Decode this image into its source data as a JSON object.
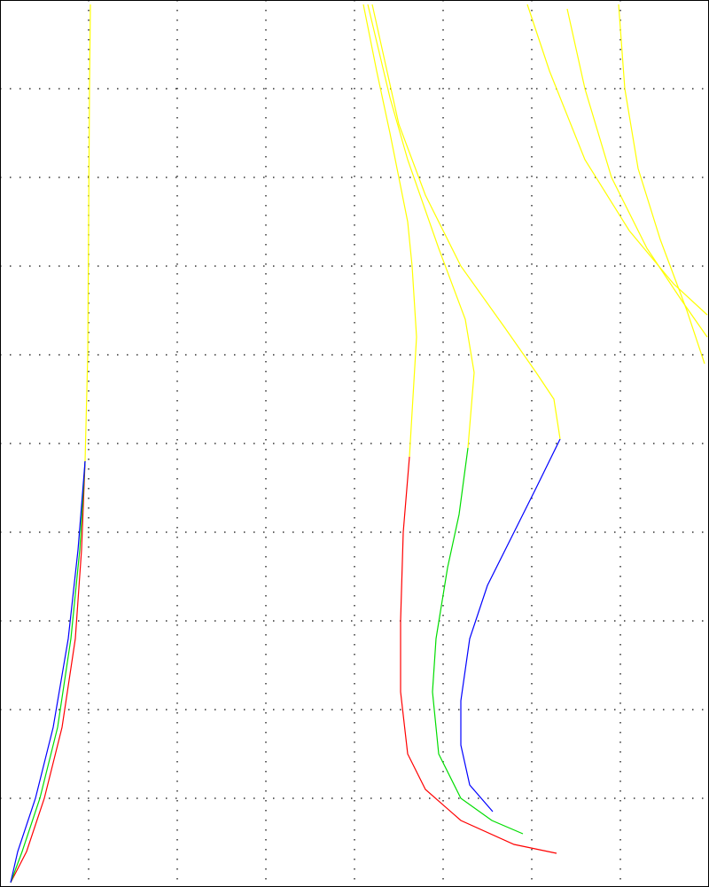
{
  "chart_data": {
    "type": "line",
    "xlim": [
      0,
      8
    ],
    "ylim": [
      0,
      10
    ],
    "xticks": [
      0,
      1,
      2,
      3,
      4,
      5,
      6,
      7,
      8
    ],
    "yticks": [
      0,
      1,
      2,
      3,
      4,
      5,
      6,
      7,
      8,
      9,
      10
    ],
    "grid": true,
    "series": [
      {
        "color": "#ff0000",
        "x": [
          0.12,
          0.3,
          0.5,
          0.7,
          0.85,
          0.92,
          0.96
        ],
        "values": [
          0.05,
          0.4,
          1,
          1.8,
          2.8,
          3.8,
          4.8
        ]
      },
      {
        "color": "#00dd00",
        "x": [
          0.12,
          0.25,
          0.45,
          0.65,
          0.8,
          0.9,
          0.96
        ],
        "values": [
          0.05,
          0.4,
          1,
          1.8,
          2.8,
          3.8,
          4.8
        ]
      },
      {
        "color": "#0000ff",
        "x": [
          0.12,
          0.2,
          0.4,
          0.6,
          0.77,
          0.88,
          0.96
        ],
        "values": [
          0.05,
          0.4,
          1,
          1.8,
          2.8,
          3.8,
          4.8
        ]
      },
      {
        "color": "#ffff00",
        "x": [
          0.96,
          0.99,
          1,
          1.01,
          1.02
        ],
        "values": [
          4.8,
          6,
          7.5,
          9,
          9.95
        ]
      },
      {
        "color": "#ff0000",
        "x": [
          6.28,
          5.8,
          5.2,
          4.8,
          4.6,
          4.52,
          4.52,
          4.55,
          4.62
        ],
        "values": [
          0.38,
          0.48,
          0.75,
          1.1,
          1.5,
          2.2,
          3,
          4,
          4.85
        ]
      },
      {
        "color": "#ffff00",
        "x": [
          4.62,
          4.7,
          4.65,
          4.6,
          4.4,
          4.25,
          4.1
        ],
        "values": [
          4.85,
          6.2,
          7,
          7.5,
          8.5,
          9.2,
          9.95
        ]
      },
      {
        "color": "#00dd00",
        "x": [
          5.9,
          5.55,
          5.2,
          4.95,
          4.88,
          4.92,
          5.05,
          5.18,
          5.28
        ],
        "values": [
          0.6,
          0.75,
          1,
          1.5,
          2.2,
          2.8,
          3.6,
          4.2,
          4.95
        ]
      },
      {
        "color": "#ffff00",
        "x": [
          5.28,
          5.35,
          5.25,
          4.95,
          4.6,
          4.4,
          4.15
        ],
        "values": [
          4.95,
          5.8,
          6.4,
          7.2,
          8.2,
          8.9,
          9.95
        ]
      },
      {
        "color": "#0000ff",
        "x": [
          5.56,
          5.3,
          5.2,
          5.2,
          5.3,
          5.5,
          5.75,
          6.05,
          6.32
        ],
        "values": [
          0.85,
          1.15,
          1.6,
          2.1,
          2.8,
          3.4,
          3.9,
          4.5,
          5.05
        ]
      },
      {
        "color": "#ffff00",
        "x": [
          6.32,
          6.25,
          6.05,
          5.7,
          5.2,
          4.8,
          4.5,
          4.2
        ],
        "values": [
          5.05,
          5.5,
          5.8,
          6.3,
          7,
          7.8,
          8.6,
          9.95
        ]
      },
      {
        "color": "#ffff00",
        "x": [
          5.95,
          6.2,
          6.6,
          7.1,
          7.6,
          7.98
        ],
        "values": [
          9.95,
          9.2,
          8.2,
          7.4,
          6.8,
          6.45
        ]
      },
      {
        "color": "#ffff00",
        "x": [
          6.4,
          6.6,
          6.9,
          7.3,
          7.7,
          7.98
        ],
        "values": [
          9.9,
          9,
          8,
          7.2,
          6.6,
          6.2
        ]
      },
      {
        "color": "#ffff00",
        "x": [
          6.98,
          7.05,
          7.2,
          7.45,
          7.75,
          7.95
        ],
        "values": [
          9.95,
          9,
          8.1,
          7.3,
          6.5,
          5.9
        ]
      }
    ]
  }
}
